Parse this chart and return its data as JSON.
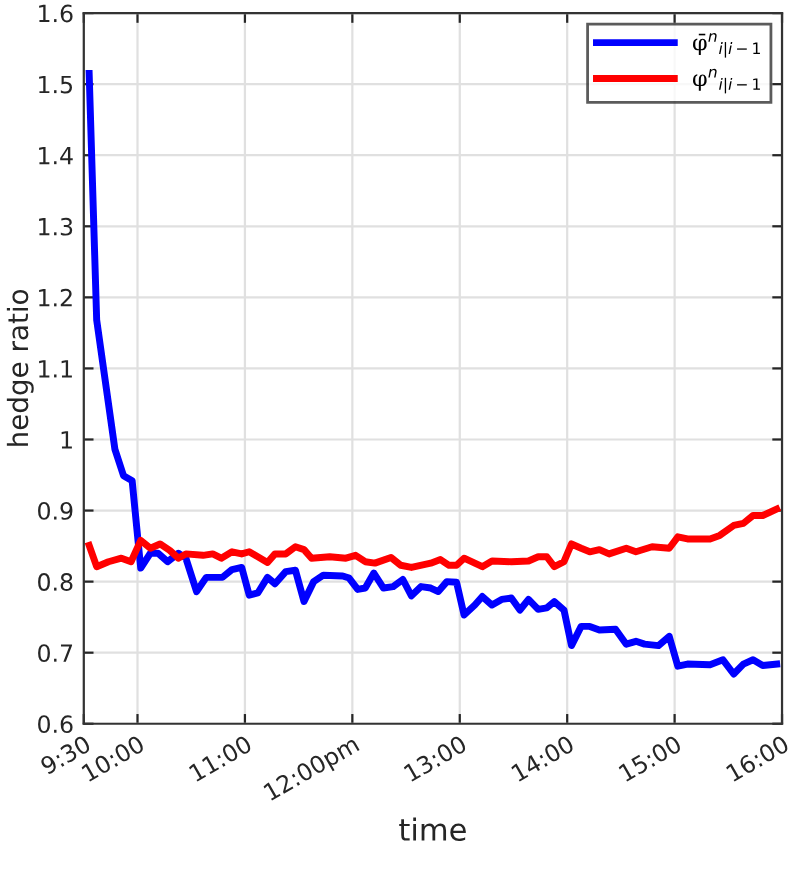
{
  "chart_data": {
    "type": "line",
    "xlabel": "time",
    "ylabel": "hedge ratio",
    "xlim": [
      9.5,
      16
    ],
    "ylim": [
      0.6,
      1.6
    ],
    "xticks": [
      {
        "value": 9.5,
        "label": "9:30"
      },
      {
        "value": 10,
        "label": "10:00"
      },
      {
        "value": 11,
        "label": "11:00"
      },
      {
        "value": 12,
        "label": "12:00pm"
      },
      {
        "value": 13,
        "label": "13:00"
      },
      {
        "value": 14,
        "label": "14:00"
      },
      {
        "value": 15,
        "label": "15:00"
      },
      {
        "value": 16,
        "label": "16:00"
      }
    ],
    "yticks": [
      0.6,
      0.7,
      0.8,
      0.9,
      1,
      1.1,
      1.2,
      1.3,
      1.4,
      1.5,
      1.6
    ],
    "grid": true,
    "legend": "top right",
    "line_style": "solid",
    "marker": "none",
    "series": [
      {
        "name": "φ̄$^{n}$$_{i|i−1}$",
        "color": "#0000ff",
        "x": [
          9.55,
          9.62,
          9.79,
          9.87,
          9.95,
          10.03,
          10.12,
          10.19,
          10.28,
          10.38,
          10.45,
          10.55,
          10.64,
          10.79,
          10.88,
          10.97,
          11.04,
          11.12,
          11.21,
          11.28,
          11.38,
          11.47,
          11.55,
          11.64,
          11.73,
          11.91,
          11.97,
          12.05,
          12.12,
          12.2,
          12.29,
          12.38,
          12.47,
          12.55,
          12.64,
          12.73,
          12.8,
          12.88,
          12.97,
          13.04,
          13.14,
          13.21,
          13.3,
          13.39,
          13.48,
          13.56,
          13.64,
          13.73,
          13.81,
          13.88,
          13.97,
          14.04,
          14.13,
          14.21,
          14.3,
          14.45,
          14.55,
          14.64,
          14.72,
          14.85,
          14.95,
          15.03,
          15.12,
          15.33,
          15.45,
          15.55,
          15.64,
          15.73,
          15.82,
          15.95
        ],
        "values": [
          1.515,
          1.168,
          0.986,
          0.949,
          0.942,
          0.819,
          0.84,
          0.84,
          0.828,
          0.84,
          0.833,
          0.786,
          0.806,
          0.806,
          0.817,
          0.82,
          0.781,
          0.784,
          0.806,
          0.797,
          0.814,
          0.816,
          0.772,
          0.8,
          0.809,
          0.808,
          0.805,
          0.789,
          0.791,
          0.812,
          0.791,
          0.793,
          0.803,
          0.78,
          0.793,
          0.791,
          0.786,
          0.8,
          0.799,
          0.753,
          0.767,
          0.779,
          0.767,
          0.775,
          0.777,
          0.76,
          0.775,
          0.761,
          0.763,
          0.772,
          0.76,
          0.71,
          0.737,
          0.737,
          0.732,
          0.733,
          0.712,
          0.716,
          0.712,
          0.71,
          0.723,
          0.681,
          0.684,
          0.683,
          0.69,
          0.67,
          0.684,
          0.69,
          0.682,
          0.684
        ]
      },
      {
        "name": "φ$^{n}$$_{i|i−1}$",
        "color": "#ff0000",
        "x": [
          9.55,
          9.62,
          9.73,
          9.85,
          9.94,
          10.03,
          10.12,
          10.21,
          10.3,
          10.38,
          10.45,
          10.61,
          10.7,
          10.78,
          10.88,
          10.97,
          11.04,
          11.21,
          11.28,
          11.38,
          11.47,
          11.55,
          11.62,
          11.79,
          11.94,
          12.03,
          12.12,
          12.21,
          12.36,
          12.45,
          12.55,
          12.73,
          12.82,
          12.9,
          12.97,
          13.04,
          13.21,
          13.3,
          13.48,
          13.64,
          13.73,
          13.81,
          13.88,
          13.97,
          14.04,
          14.13,
          14.21,
          14.3,
          14.39,
          14.55,
          14.64,
          14.79,
          14.95,
          15.03,
          15.12,
          15.33,
          15.42,
          15.55,
          15.64,
          15.73,
          15.82,
          15.95
        ],
        "values": [
          0.851,
          0.821,
          0.828,
          0.833,
          0.828,
          0.858,
          0.847,
          0.853,
          0.844,
          0.833,
          0.839,
          0.837,
          0.839,
          0.833,
          0.842,
          0.839,
          0.842,
          0.827,
          0.839,
          0.839,
          0.849,
          0.845,
          0.833,
          0.835,
          0.833,
          0.837,
          0.828,
          0.826,
          0.834,
          0.823,
          0.82,
          0.826,
          0.831,
          0.823,
          0.823,
          0.833,
          0.821,
          0.829,
          0.828,
          0.829,
          0.835,
          0.835,
          0.821,
          0.828,
          0.853,
          0.847,
          0.842,
          0.845,
          0.839,
          0.847,
          0.842,
          0.849,
          0.847,
          0.863,
          0.86,
          0.86,
          0.865,
          0.879,
          0.882,
          0.893,
          0.893,
          0.902
        ]
      }
    ]
  }
}
